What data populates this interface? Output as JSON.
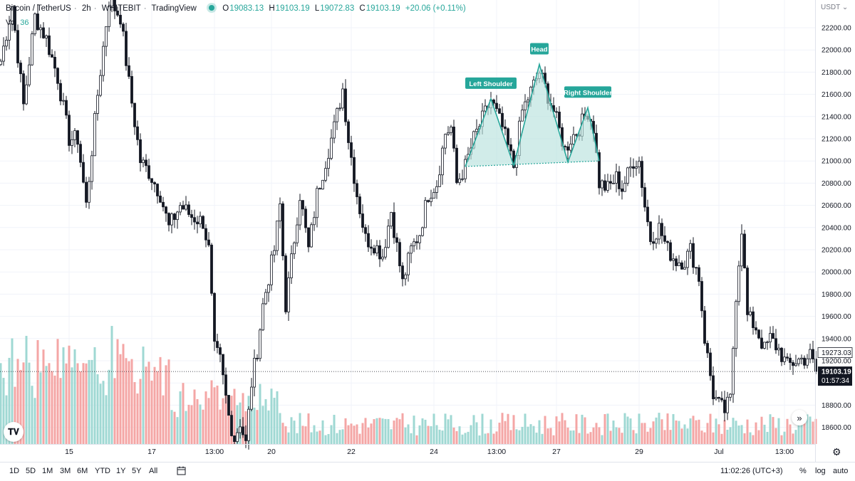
{
  "header": {
    "symbol": "Bitcoin / TetherUS",
    "interval": "2h",
    "exchange": "WHITEBIT",
    "source": "TradingView",
    "o_label": "O",
    "o_value": "19083.13",
    "h_label": "H",
    "h_value": "19103.19",
    "l_label": "L",
    "l_value": "19072.83",
    "c_label": "C",
    "c_value": "19103.19",
    "change": "+20.06 (+0.11%)",
    "vol_label": "Vol",
    "vol_value": "36"
  },
  "currency": "USDT",
  "timeframes": [
    "1D",
    "5D",
    "1M",
    "3M",
    "6M",
    "YTD",
    "1Y",
    "5Y",
    "All"
  ],
  "clock": "11:02:26 (UTC+3)",
  "scale_options": {
    "percent": "%",
    "log": "log",
    "auto": "auto"
  },
  "colors": {
    "up": "#26a69a",
    "down": "#ef5350",
    "vol_up": "#9fd8d3",
    "vol_down": "#f4a6a5",
    "pattern": "#26a69a",
    "pattern_fill": "#b8e2dd"
  },
  "chart_data": {
    "type": "candlestick",
    "title": "Bitcoin / TetherUS · 2h · WHITEBIT",
    "ylim": [
      18450,
      22450
    ],
    "y_ticks": [
      18600,
      18800,
      19000,
      19200,
      19400,
      19600,
      19800,
      20000,
      20200,
      20400,
      20600,
      20800,
      21000,
      21200,
      21400,
      21600,
      21800,
      22000,
      22200
    ],
    "y_tick_labels": [
      "18600.00",
      "18800.00",
      "19000.00",
      "19200.00",
      "19400.00",
      "19600.00",
      "19800.00",
      "20000.00",
      "20200.00",
      "20400.00",
      "20600.00",
      "20800.00",
      "21000.00",
      "21200.00",
      "21400.00",
      "21600.00",
      "21800.00",
      "22000.00",
      "22200.00"
    ],
    "x_ticks": [
      {
        "label": "15",
        "bar": 24
      },
      {
        "label": "17",
        "bar": 53
      },
      {
        "label": "13:00",
        "bar": 75
      },
      {
        "label": "20",
        "bar": 95
      },
      {
        "label": "22",
        "bar": 123
      },
      {
        "label": "24",
        "bar": 152
      },
      {
        "label": "13:00",
        "bar": 174
      },
      {
        "label": "27",
        "bar": 195
      },
      {
        "label": "29",
        "bar": 224
      },
      {
        "label": "Jul",
        "bar": 252
      },
      {
        "label": "13:00",
        "bar": 275
      }
    ],
    "last_price": "19103.19",
    "countdown": "01:57:34",
    "marker_price": "19273.03",
    "marker_value": 19273.03,
    "annotations": {
      "left_shoulder": {
        "label": "Left Shoulder",
        "bar": 172,
        "price": 21560
      },
      "head": {
        "label": "Head",
        "bar": 189,
        "price": 21870
      },
      "right_shoulder": {
        "label": "Right Shoulder",
        "bar": 206,
        "price": 21480
      },
      "pattern_points": [
        [
          163,
          20950
        ],
        [
          172,
          21560
        ],
        [
          180,
          20960
        ],
        [
          189,
          21870
        ],
        [
          199,
          20990
        ],
        [
          206,
          21480
        ],
        [
          210,
          21000
        ]
      ],
      "neckline": [
        [
          163,
          20950
        ],
        [
          210,
          21000
        ]
      ]
    },
    "anchors": [
      [
        0,
        21900
      ],
      [
        4,
        22400
      ],
      [
        8,
        21500
      ],
      [
        12,
        22300
      ],
      [
        16,
        22100
      ],
      [
        20,
        21750
      ],
      [
        24,
        21200
      ],
      [
        27,
        21200
      ],
      [
        30,
        20600
      ],
      [
        34,
        21600
      ],
      [
        38,
        22450
      ],
      [
        42,
        22300
      ],
      [
        45,
        21700
      ],
      [
        49,
        21000
      ],
      [
        52,
        20900
      ],
      [
        56,
        20700
      ],
      [
        59,
        20400
      ],
      [
        63,
        20600
      ],
      [
        67,
        20500
      ],
      [
        71,
        20450
      ],
      [
        73,
        20200
      ],
      [
        75,
        19300
      ],
      [
        77,
        19200
      ],
      [
        80,
        18700
      ],
      [
        82,
        18500
      ],
      [
        84,
        18650
      ],
      [
        86,
        18450
      ],
      [
        88,
        19000
      ],
      [
        90,
        19300
      ],
      [
        92,
        19700
      ],
      [
        96,
        20200
      ],
      [
        98,
        20600
      ],
      [
        100,
        19700
      ],
      [
        102,
        20100
      ],
      [
        105,
        20700
      ],
      [
        108,
        20200
      ],
      [
        111,
        20700
      ],
      [
        114,
        21000
      ],
      [
        117,
        21300
      ],
      [
        120,
        21650
      ],
      [
        122,
        21200
      ],
      [
        125,
        20700
      ],
      [
        128,
        20300
      ],
      [
        131,
        20250
      ],
      [
        134,
        20150
      ],
      [
        137,
        20550
      ],
      [
        141,
        19900
      ],
      [
        144,
        20200
      ],
      [
        147,
        20350
      ],
      [
        150,
        20700
      ],
      [
        153,
        20800
      ],
      [
        156,
        21250
      ],
      [
        158,
        21300
      ],
      [
        160,
        20800
      ],
      [
        163,
        20950
      ],
      [
        166,
        21200
      ],
      [
        172,
        21550
      ],
      [
        176,
        21300
      ],
      [
        180,
        20950
      ],
      [
        183,
        21450
      ],
      [
        189,
        21800
      ],
      [
        194,
        21450
      ],
      [
        198,
        21100
      ],
      [
        200,
        21200
      ],
      [
        203,
        21300
      ],
      [
        206,
        21450
      ],
      [
        208,
        21300
      ],
      [
        210,
        20800
      ],
      [
        213,
        20750
      ],
      [
        216,
        20850
      ],
      [
        218,
        20750
      ],
      [
        222,
        21000
      ],
      [
        224,
        21000
      ],
      [
        226,
        20600
      ],
      [
        228,
        20300
      ],
      [
        231,
        20400
      ],
      [
        234,
        20200
      ],
      [
        237,
        20100
      ],
      [
        240,
        20100
      ],
      [
        242,
        20200
      ],
      [
        245,
        19950
      ],
      [
        247,
        19400
      ],
      [
        250,
        18900
      ],
      [
        252,
        18800
      ],
      [
        254,
        18750
      ],
      [
        256,
        18850
      ],
      [
        258,
        19800
      ],
      [
        260,
        20400
      ],
      [
        262,
        19600
      ],
      [
        265,
        19500
      ],
      [
        268,
        19300
      ],
      [
        270,
        19400
      ],
      [
        273,
        19300
      ],
      [
        276,
        19150
      ],
      [
        279,
        19200
      ],
      [
        282,
        19220
      ],
      [
        284,
        19250
      ],
      [
        286,
        19103
      ]
    ]
  }
}
